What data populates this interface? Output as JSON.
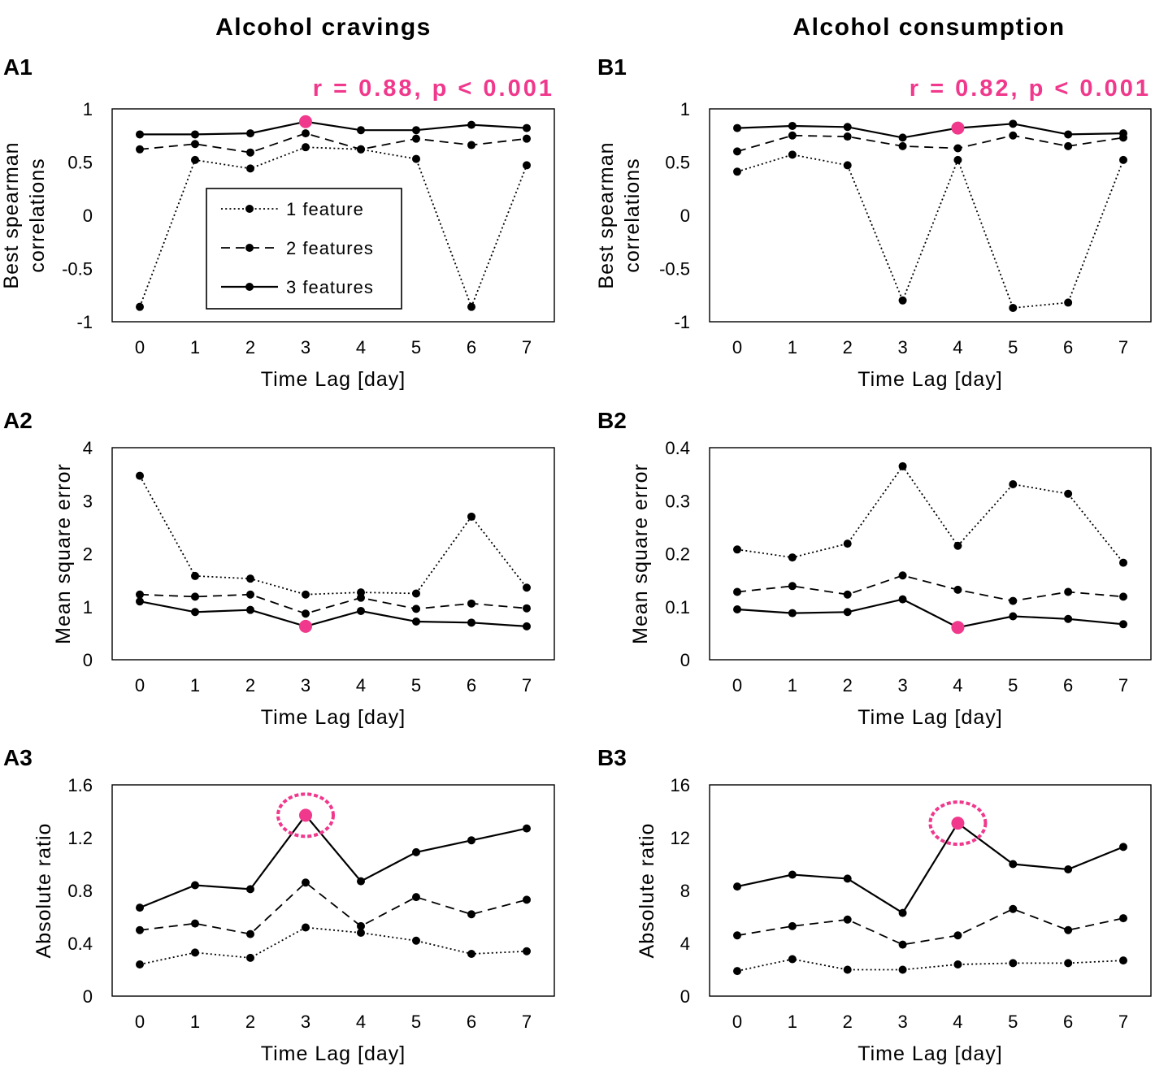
{
  "colors": {
    "highlight": "#f0388c",
    "series": "#000000"
  },
  "columns": [
    {
      "title": "Alcohol cravings"
    },
    {
      "title": "Alcohol consumption"
    }
  ],
  "legend": {
    "entries": [
      {
        "label": "1 feature",
        "style": "dotted"
      },
      {
        "label": "2 features",
        "style": "dashed"
      },
      {
        "label": "3 features",
        "style": "solid"
      }
    ]
  },
  "chart_data": [
    {
      "id": "A1",
      "type": "line",
      "label": "A1",
      "xlabel": "Time Lag [day]",
      "ylabel": [
        "Best spearman",
        "correlations"
      ],
      "annotation": "r =  0.88, p <  0.001",
      "ylim": [
        -1,
        1
      ],
      "yticks": [
        1,
        0.5,
        0,
        -0.5,
        -1
      ],
      "ytick_labels": [
        "1",
        "0.5",
        "0",
        "-0.5",
        "-1"
      ],
      "x": [
        0,
        1,
        2,
        3,
        4,
        5,
        6,
        7
      ],
      "series": [
        {
          "name": "1 feature",
          "style": "dotted",
          "values": [
            -0.86,
            0.52,
            0.44,
            0.64,
            0.62,
            0.53,
            -0.86,
            0.47
          ]
        },
        {
          "name": "2 features",
          "style": "dashed",
          "values": [
            0.62,
            0.67,
            0.59,
            0.77,
            0.62,
            0.72,
            0.66,
            0.72
          ]
        },
        {
          "name": "3 features",
          "style": "solid",
          "values": [
            0.76,
            0.76,
            0.77,
            0.88,
            0.8,
            0.8,
            0.85,
            0.82
          ]
        }
      ],
      "highlight": {
        "series": 2,
        "index": 3,
        "ring": false
      }
    },
    {
      "id": "B1",
      "type": "line",
      "label": "B1",
      "xlabel": "Time Lag [day]",
      "ylabel": [
        "Best spearman",
        "correlations"
      ],
      "annotation": "r =  0.82, p <  0.001",
      "ylim": [
        -1,
        1
      ],
      "yticks": [
        1,
        0.5,
        0,
        -0.5,
        -1
      ],
      "ytick_labels": [
        "1",
        "0.5",
        "0",
        "-0.5",
        "-1"
      ],
      "x": [
        0,
        1,
        2,
        3,
        4,
        5,
        6,
        7
      ],
      "series": [
        {
          "name": "1 feature",
          "style": "dotted",
          "values": [
            0.41,
            0.57,
            0.47,
            -0.8,
            0.52,
            -0.87,
            -0.82,
            0.52
          ]
        },
        {
          "name": "2 features",
          "style": "dashed",
          "values": [
            0.6,
            0.75,
            0.74,
            0.65,
            0.63,
            0.75,
            0.65,
            0.73
          ]
        },
        {
          "name": "3 features",
          "style": "solid",
          "values": [
            0.82,
            0.84,
            0.83,
            0.73,
            0.82,
            0.86,
            0.76,
            0.77
          ]
        }
      ],
      "highlight": {
        "series": 2,
        "index": 4,
        "ring": false
      }
    },
    {
      "id": "A2",
      "type": "line",
      "label": "A2",
      "xlabel": "Time Lag [day]",
      "ylabel": [
        "Mean square error"
      ],
      "ylim": [
        0,
        4
      ],
      "yticks": [
        4,
        3,
        2,
        1,
        0
      ],
      "ytick_labels": [
        "4",
        "3",
        "2",
        "1",
        "0"
      ],
      "x": [
        0,
        1,
        2,
        3,
        4,
        5,
        6,
        7
      ],
      "series": [
        {
          "name": "1 feature",
          "style": "dotted",
          "values": [
            3.47,
            1.58,
            1.53,
            1.23,
            1.27,
            1.25,
            2.7,
            1.36
          ]
        },
        {
          "name": "2 features",
          "style": "dashed",
          "values": [
            1.23,
            1.19,
            1.23,
            0.87,
            1.17,
            0.96,
            1.06,
            0.97
          ]
        },
        {
          "name": "3 features",
          "style": "solid",
          "values": [
            1.1,
            0.9,
            0.94,
            0.63,
            0.92,
            0.72,
            0.7,
            0.63
          ]
        }
      ],
      "highlight": {
        "series": 2,
        "index": 3,
        "ring": false
      }
    },
    {
      "id": "B2",
      "type": "line",
      "label": "B2",
      "xlabel": "Time Lag [day]",
      "ylabel": [
        "Mean square error"
      ],
      "ylim": [
        0,
        0.4
      ],
      "yticks": [
        0.4,
        0.3,
        0.2,
        0.1,
        0
      ],
      "ytick_labels": [
        "0.4",
        "0.3",
        "0.2",
        "0.1",
        "0"
      ],
      "x": [
        0,
        1,
        2,
        3,
        4,
        5,
        6,
        7
      ],
      "series": [
        {
          "name": "1 feature",
          "style": "dotted",
          "values": [
            0.208,
            0.193,
            0.219,
            0.365,
            0.215,
            0.331,
            0.313,
            0.183
          ]
        },
        {
          "name": "2 features",
          "style": "dashed",
          "values": [
            0.128,
            0.139,
            0.123,
            0.159,
            0.132,
            0.111,
            0.128,
            0.119
          ]
        },
        {
          "name": "3 features",
          "style": "solid",
          "values": [
            0.095,
            0.088,
            0.09,
            0.114,
            0.061,
            0.082,
            0.077,
            0.067
          ]
        }
      ],
      "highlight": {
        "series": 2,
        "index": 4,
        "ring": false
      }
    },
    {
      "id": "A3",
      "type": "line",
      "label": "A3",
      "xlabel": "Time Lag [day]",
      "ylabel": [
        "Absolute ratio"
      ],
      "ylim": [
        0,
        1.6
      ],
      "yticks": [
        1.6,
        1.2,
        0.8,
        0.4,
        0
      ],
      "ytick_labels": [
        "1.6",
        "1.2",
        "0.8",
        "0.4",
        "0"
      ],
      "x": [
        0,
        1,
        2,
        3,
        4,
        5,
        6,
        7
      ],
      "series": [
        {
          "name": "1 feature",
          "style": "dotted",
          "values": [
            0.24,
            0.33,
            0.29,
            0.52,
            0.48,
            0.42,
            0.32,
            0.34
          ]
        },
        {
          "name": "2 features",
          "style": "dashed",
          "values": [
            0.5,
            0.55,
            0.47,
            0.86,
            0.53,
            0.75,
            0.62,
            0.73
          ]
        },
        {
          "name": "3 features",
          "style": "solid",
          "values": [
            0.67,
            0.84,
            0.81,
            1.37,
            0.87,
            1.09,
            1.18,
            1.27
          ]
        }
      ],
      "highlight": {
        "series": 2,
        "index": 3,
        "ring": true
      }
    },
    {
      "id": "B3",
      "type": "line",
      "label": "B3",
      "xlabel": "Time Lag [day]",
      "ylabel": [
        "Absolute ratio"
      ],
      "ylim": [
        0,
        16
      ],
      "yticks": [
        16,
        12,
        8,
        4,
        0
      ],
      "ytick_labels": [
        "16",
        "12",
        "8",
        "4",
        "0"
      ],
      "x": [
        0,
        1,
        2,
        3,
        4,
        5,
        6,
        7
      ],
      "series": [
        {
          "name": "1 feature",
          "style": "dotted",
          "values": [
            1.9,
            2.8,
            2.0,
            2.0,
            2.4,
            2.5,
            2.5,
            2.7
          ]
        },
        {
          "name": "2 features",
          "style": "dashed",
          "values": [
            4.6,
            5.3,
            5.8,
            3.9,
            4.6,
            6.6,
            5.0,
            5.9
          ]
        },
        {
          "name": "3 features",
          "style": "solid",
          "values": [
            8.3,
            9.2,
            8.9,
            6.3,
            13.1,
            10.0,
            9.6,
            11.3
          ]
        }
      ],
      "highlight": {
        "series": 2,
        "index": 4,
        "ring": true
      }
    }
  ]
}
